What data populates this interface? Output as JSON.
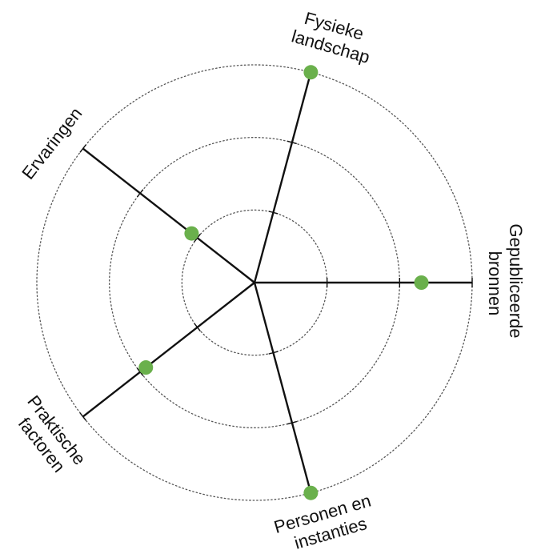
{
  "chart_data": {
    "type": "radar",
    "title": "",
    "levels": 3,
    "max": 3,
    "grid": "dotted concentric circles",
    "colors": {
      "axis": "#111111",
      "grid": "#555555",
      "point": "#6ab04c"
    },
    "axes": [
      {
        "key": "fysiek",
        "label_lines": [
          "Fysieke",
          "landschap"
        ],
        "value": 3
      },
      {
        "key": "gepubliceerd",
        "label_lines": [
          "Gepubliceerde",
          "bronnen"
        ],
        "value": 2.3
      },
      {
        "key": "personen",
        "label_lines": [
          "Personen en",
          "instanties"
        ],
        "value": 3
      },
      {
        "key": "praktisch",
        "label_lines": [
          "Praktische",
          "factoren"
        ],
        "value": 1.9
      },
      {
        "key": "ervaringen",
        "label_lines": [
          "Ervaringen"
        ],
        "value": 1.1
      }
    ]
  }
}
